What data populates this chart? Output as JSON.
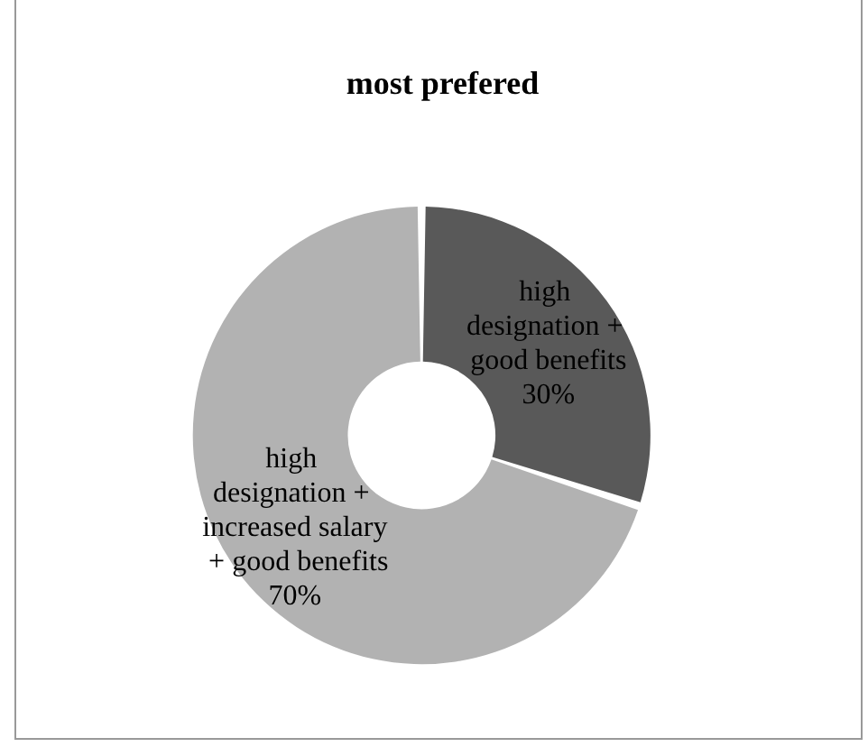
{
  "chart_data": {
    "type": "donut",
    "title": "most prefered",
    "categories": [
      "high designation + good benefits",
      "high designation + increased salary + good benefits"
    ],
    "values": [
      30,
      70
    ],
    "value_labels": [
      "30%",
      "70%"
    ],
    "colors": [
      "#595959",
      "#b2b2b2"
    ],
    "legend": false
  }
}
